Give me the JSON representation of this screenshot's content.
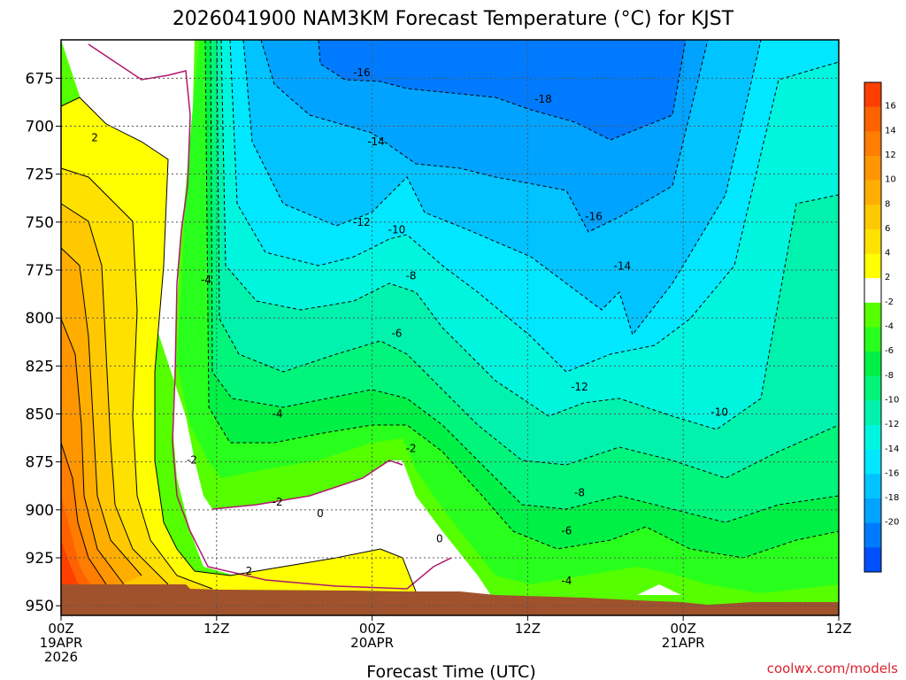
{
  "chart_data": {
    "type": "heatmap",
    "title": "2026041900 NAM3KM Forecast Temperature (°C) for KJST",
    "xlabel": "Forecast Time (UTC)",
    "ylabel": "",
    "y_ticks": [
      "675",
      "700",
      "725",
      "750",
      "775",
      "800",
      "825",
      "850",
      "875",
      "900",
      "925",
      "950"
    ],
    "y_range": [
      655,
      955
    ],
    "x_range": [
      0,
      60
    ],
    "x_ticks": [
      {
        "hour": 0,
        "line1": "00Z",
        "line2": "19APR",
        "line3": "2026"
      },
      {
        "hour": 12,
        "line1": "12Z",
        "line2": "",
        "line3": ""
      },
      {
        "hour": 24,
        "line1": "00Z",
        "line2": "20APR",
        "line3": ""
      },
      {
        "hour": 36,
        "line1": "12Z",
        "line2": "",
        "line3": ""
      },
      {
        "hour": 48,
        "line1": "00Z",
        "line2": "21APR",
        "line3": ""
      },
      {
        "hour": 60,
        "line1": "12Z",
        "line2": "",
        "line3": ""
      }
    ],
    "colorbar": {
      "ticks": [
        "16",
        "14",
        "12",
        "10",
        "8",
        "6",
        "4",
        "2",
        "-2",
        "-4",
        "-6",
        "-8",
        "-10",
        "-12",
        "-14",
        "-16",
        "-18",
        "-20"
      ],
      "colors": [
        "#ff3f00",
        "#ff6200",
        "#ff7d00",
        "#ff9600",
        "#ffae00",
        "#ffc800",
        "#ffe100",
        "#ffff00",
        "#ffffff",
        "#55ff00",
        "#29ff1c",
        "#00f046",
        "#00f57a",
        "#00f2ad",
        "#00f5de",
        "#00e7ff",
        "#00c3ff",
        "#00a3ff",
        "#007bff",
        "#0050ff"
      ]
    },
    "contour_labels": [
      {
        "text": "-16",
        "hour": 23.2,
        "p": 672
      },
      {
        "text": "-18",
        "hour": 37.2,
        "p": 686
      },
      {
        "text": "-14",
        "hour": 24.3,
        "p": 708
      },
      {
        "text": "-16",
        "hour": 41.1,
        "p": 747
      },
      {
        "text": "-12",
        "hour": 23.2,
        "p": 750
      },
      {
        "text": "-10",
        "hour": 25.9,
        "p": 754
      },
      {
        "text": "-14",
        "hour": 43.3,
        "p": 773
      },
      {
        "text": "-8",
        "hour": 27.0,
        "p": 778
      },
      {
        "text": "-4",
        "hour": 11.2,
        "p": 780
      },
      {
        "text": "-6",
        "hour": 25.9,
        "p": 808
      },
      {
        "text": "-12",
        "hour": 40.0,
        "p": 836
      },
      {
        "text": "-10",
        "hour": 50.8,
        "p": 849
      },
      {
        "text": "-4",
        "hour": 16.7,
        "p": 850
      },
      {
        "text": "-2",
        "hour": 27.0,
        "p": 868
      },
      {
        "text": "-2",
        "hour": 10.1,
        "p": 874
      },
      {
        "text": "-8",
        "hour": 40.0,
        "p": 891
      },
      {
        "text": "-2",
        "hour": 16.7,
        "p": 896
      },
      {
        "text": "0",
        "hour": 20.0,
        "p": 902
      },
      {
        "text": "2",
        "hour": 2.6,
        "p": 706
      },
      {
        "text": "-6",
        "hour": 39.0,
        "p": 911
      },
      {
        "text": "0",
        "hour": 29.2,
        "p": 915
      },
      {
        "text": "2",
        "hour": 14.5,
        "p": 932
      },
      {
        "text": "-4",
        "hour": 39.0,
        "p": 937
      }
    ]
  },
  "credit": "coolwx.com/models"
}
